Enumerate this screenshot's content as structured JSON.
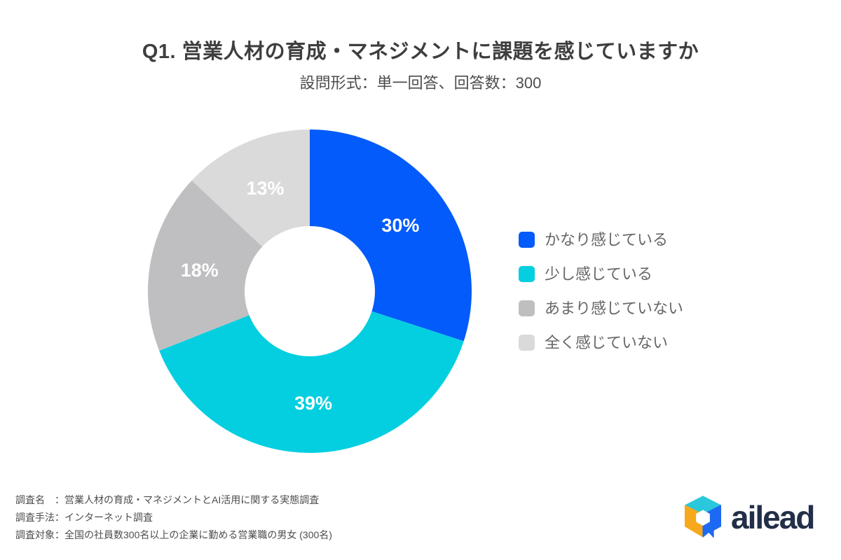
{
  "header": {
    "title": "Q1. 営業人材の育成・マネジメントに課題を感じていますか",
    "subtitle": "設問形式：単一回答、回答数：300"
  },
  "chart_data": {
    "type": "pie",
    "subtype": "donut",
    "title": "Q1. 営業人材の育成・マネジメントに課題を感じていますか",
    "subtitle": "設問形式：単一回答、回答数：300",
    "response_count": 300,
    "direction": "clockwise",
    "start_angle_deg": 0,
    "legend_position": "right",
    "segments": [
      {
        "label": "かなり感じている",
        "value": 30,
        "pct_label": "30%",
        "color": "#025BFA"
      },
      {
        "label": "少し感じている",
        "value": 39,
        "pct_label": "39%",
        "color": "#04CFE0"
      },
      {
        "label": "あまり感じていない",
        "value": 18,
        "pct_label": "18%",
        "color": "#BFBFC1"
      },
      {
        "label": "全く感じていない",
        "value": 13,
        "pct_label": "13%",
        "color": "#DADADB"
      }
    ]
  },
  "footer": {
    "lines": [
      "調査名　：営業人材の育成・マネジメントとAI活用に関する実態調査",
      "調査手法：インターネット調査",
      "調査対象：全国の社員数300名以上の企業に勤める営業職の男女 (300名)"
    ]
  },
  "logo": {
    "text": "ailead",
    "colors": {
      "icon_top": "#2BC7DC",
      "icon_left": "#F6A91C",
      "icon_right": "#1E69F3",
      "text": "#232F48"
    }
  }
}
